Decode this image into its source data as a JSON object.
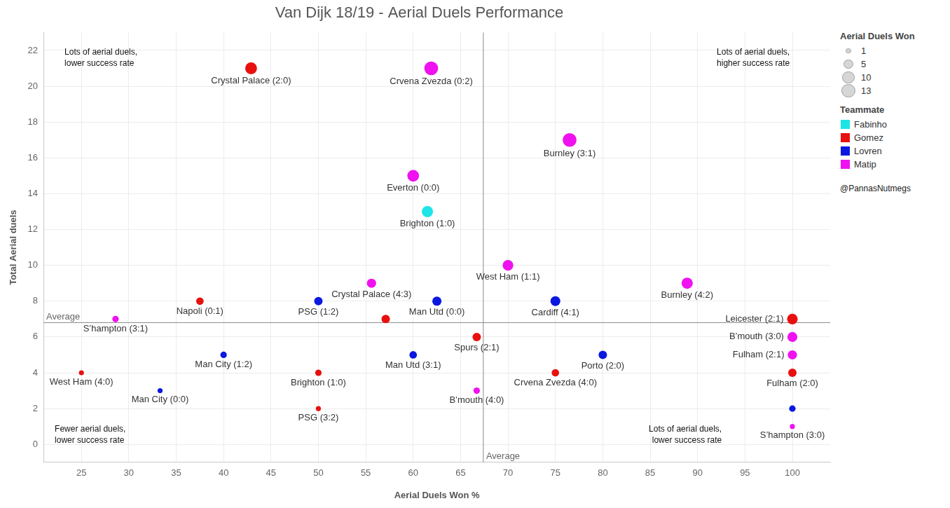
{
  "chart_data": {
    "type": "bubble",
    "title": "Van Dijk 18/19 - Aerial Duels Performance",
    "x_label": "Aerial Duels Won %",
    "y_label": "Total Aerial duels",
    "xlim": [
      21,
      104
    ],
    "xticks": [
      25,
      30,
      35,
      40,
      45,
      50,
      55,
      60,
      65,
      70,
      75,
      80,
      85,
      90,
      95,
      100
    ],
    "ylim": [
      -1,
      23
    ],
    "yticks": [
      0,
      2,
      4,
      6,
      8,
      10,
      12,
      14,
      16,
      18,
      20,
      22
    ],
    "grid": true,
    "legend": "right",
    "legend_title": "Teammate",
    "size_legend": {
      "title": "Aerial Duels Won",
      "values": [
        1,
        5,
        10,
        13
      ]
    },
    "credit": "@PannasNutmegs",
    "reference_lines": [
      {
        "axis": "x",
        "value": 67.4,
        "label": "Average"
      },
      {
        "axis": "y",
        "value": 6.8,
        "label": "Average"
      }
    ],
    "annotations": [
      [
        "Lots of aerial duels,",
        "lower success rate"
      ],
      [
        "Lots of aerial duels,",
        "higher success rate"
      ],
      [
        "Fewer aerial duels,",
        "lower success rate"
      ],
      [
        "Lots of aerial duels,",
        "lower success rate"
      ]
    ],
    "series": [
      {
        "name": "Fabinho",
        "color": "#1de4e6",
        "x": [
          61.5
        ],
        "y": [
          13
        ],
        "sizes": [
          8
        ],
        "labels": [
          "Brighton (1:0)"
        ]
      },
      {
        "name": "Gomez",
        "color": "#e8100e",
        "x": [
          42.9,
          37.5,
          57.1,
          100,
          66.7,
          25,
          50,
          75,
          100,
          50
        ],
        "y": [
          21,
          8,
          7,
          7,
          6,
          4,
          4,
          4,
          4,
          2
        ],
        "sizes": [
          9,
          3,
          4,
          7,
          4,
          1,
          2,
          3,
          4,
          1
        ],
        "labels": [
          "Crystal Palace (2:0)",
          "Napoli (0:1)",
          null,
          "Leicester (2:1)",
          "Spurs (2:1)",
          "West Ham (4:0)",
          "Brighton (1:0)",
          "Crvena Zvezda (4:0)",
          "Fulham (2:0)",
          "PSG (3:2)"
        ]
      },
      {
        "name": "Lovren",
        "color": "#0a18e0",
        "x": [
          50,
          62.5,
          75,
          40,
          60,
          80,
          33.3,
          100
        ],
        "y": [
          8,
          8,
          8,
          5,
          5,
          5,
          3,
          2
        ],
        "sizes": [
          4,
          5,
          6,
          2,
          3,
          4,
          1,
          2
        ],
        "labels": [
          "PSG (1:2)",
          "Man Utd (0:0)",
          "Cardiff (4:1)",
          "Man City (1:2)",
          "Man Utd (3:1)",
          "Porto (2:0)",
          "Man City (0:0)",
          null
        ]
      },
      {
        "name": "Matip",
        "color": "#f011f0",
        "x": [
          61.9,
          76.5,
          60,
          70,
          88.9,
          55.6,
          28.6,
          100,
          100,
          66.7,
          100
        ],
        "y": [
          21,
          17,
          15,
          10,
          9,
          9,
          7,
          6,
          5,
          3,
          1
        ],
        "sizes": [
          13,
          13,
          9,
          7,
          8,
          5,
          2,
          6,
          5,
          2,
          1
        ],
        "labels": [
          "Crvena Zvezda (0:2)",
          "Burnley (3:1)",
          "Everton (0:0)",
          "West Ham (1:1)",
          "Burnley (4:2)",
          "Crystal Palace (4:3)",
          "S’hampton (3:1)",
          "B’mouth (3:0)",
          "Fulham (2:1)",
          "B’mouth (4:0)",
          "S’hampton (3:0)"
        ]
      }
    ]
  }
}
